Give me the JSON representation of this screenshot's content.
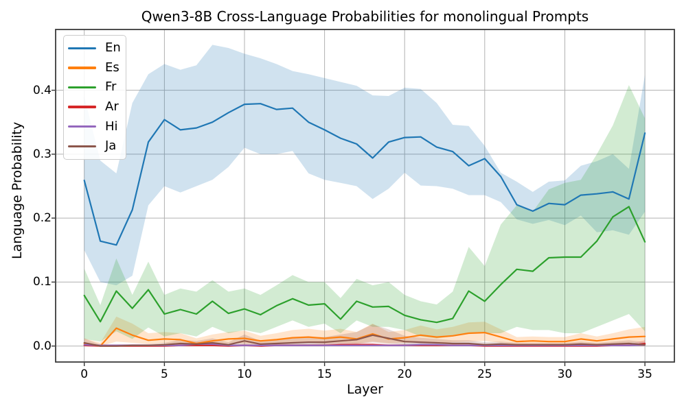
{
  "chart_data": {
    "type": "line",
    "title": "Qwen3-8B Cross-Language Probabilities for monolingual Prompts",
    "xlabel": "Layer",
    "ylabel": "Language Probability",
    "x": [
      0,
      1,
      2,
      3,
      4,
      5,
      6,
      7,
      8,
      9,
      10,
      11,
      12,
      13,
      14,
      15,
      16,
      17,
      18,
      19,
      20,
      21,
      22,
      23,
      24,
      25,
      26,
      27,
      28,
      29,
      30,
      31,
      32,
      33,
      34,
      35
    ],
    "xticks": [
      0,
      5,
      10,
      15,
      20,
      25,
      30,
      35
    ],
    "yticks": [
      0.0,
      0.1,
      0.2,
      0.3,
      0.4
    ],
    "xlim": [
      -1.79,
      36.84
    ],
    "ylim": [
      -0.025,
      0.495
    ],
    "grid": true,
    "legend_position": "upper left",
    "band_opacity": 0.21,
    "style": {
      "grid_color": "#b0b0b0",
      "spine_color": "#3a3a3a",
      "tick_color": "#333333",
      "line_width": 2.2
    },
    "series": [
      {
        "name": "En",
        "color": "#1f77b4",
        "values": [
          0.259,
          0.164,
          0.158,
          0.213,
          0.319,
          0.354,
          0.338,
          0.341,
          0.35,
          0.365,
          0.378,
          0.379,
          0.37,
          0.372,
          0.35,
          0.338,
          0.325,
          0.316,
          0.294,
          0.319,
          0.326,
          0.327,
          0.311,
          0.304,
          0.282,
          0.293,
          0.265,
          0.221,
          0.211,
          0.223,
          0.221,
          0.236,
          0.238,
          0.241,
          0.23,
          0.333
        ],
        "band_lower": [
          0.15,
          0.1,
          0.095,
          0.11,
          0.22,
          0.25,
          0.24,
          0.25,
          0.26,
          0.28,
          0.31,
          0.3,
          0.3,
          0.305,
          0.27,
          0.26,
          0.255,
          0.25,
          0.23,
          0.246,
          0.271,
          0.251,
          0.25,
          0.246,
          0.236,
          0.236,
          0.225,
          0.198,
          0.191,
          0.197,
          0.189,
          0.204,
          0.178,
          0.181,
          0.174,
          0.21
        ],
        "band_upper": [
          0.39,
          0.29,
          0.27,
          0.38,
          0.425,
          0.441,
          0.432,
          0.439,
          0.471,
          0.466,
          0.457,
          0.45,
          0.441,
          0.43,
          0.425,
          0.419,
          0.413,
          0.407,
          0.392,
          0.391,
          0.404,
          0.402,
          0.38,
          0.346,
          0.344,
          0.313,
          0.271,
          0.257,
          0.241,
          0.257,
          0.259,
          0.282,
          0.289,
          0.3,
          0.277,
          0.424
        ]
      },
      {
        "name": "Es",
        "color": "#ff7f0e",
        "values": [
          0.004,
          0.0,
          0.028,
          0.017,
          0.009,
          0.011,
          0.01,
          0.004,
          0.008,
          0.011,
          0.012,
          0.008,
          0.01,
          0.013,
          0.014,
          0.012,
          0.014,
          0.011,
          0.019,
          0.011,
          0.013,
          0.017,
          0.014,
          0.016,
          0.02,
          0.021,
          0.014,
          0.007,
          0.008,
          0.007,
          0.007,
          0.011,
          0.008,
          0.011,
          0.014,
          0.015
        ],
        "band_lower": [
          0.0,
          0.0,
          0.007,
          0.005,
          0.003,
          0.004,
          0.003,
          0.001,
          0.002,
          0.004,
          0.004,
          0.002,
          0.003,
          0.005,
          0.005,
          0.004,
          0.005,
          0.004,
          0.007,
          0.004,
          0.005,
          0.006,
          0.005,
          0.006,
          0.007,
          0.008,
          0.005,
          0.002,
          0.002,
          0.002,
          0.002,
          0.004,
          0.002,
          0.004,
          0.005,
          0.006
        ],
        "band_upper": [
          0.012,
          0.005,
          0.046,
          0.035,
          0.02,
          0.022,
          0.02,
          0.012,
          0.018,
          0.022,
          0.024,
          0.016,
          0.02,
          0.025,
          0.027,
          0.024,
          0.027,
          0.022,
          0.035,
          0.022,
          0.025,
          0.032,
          0.026,
          0.03,
          0.037,
          0.038,
          0.026,
          0.014,
          0.015,
          0.014,
          0.014,
          0.02,
          0.015,
          0.02,
          0.026,
          0.03
        ]
      },
      {
        "name": "Fr",
        "color": "#2ca02c",
        "values": [
          0.079,
          0.038,
          0.086,
          0.059,
          0.088,
          0.05,
          0.057,
          0.05,
          0.07,
          0.051,
          0.058,
          0.049,
          0.063,
          0.074,
          0.064,
          0.066,
          0.042,
          0.07,
          0.061,
          0.062,
          0.048,
          0.041,
          0.037,
          0.043,
          0.086,
          0.07,
          0.096,
          0.12,
          0.117,
          0.138,
          0.139,
          0.139,
          0.164,
          0.202,
          0.218,
          0.163
        ],
        "band_lower": [
          0.011,
          0.007,
          0.023,
          0.011,
          0.029,
          0.015,
          0.02,
          0.015,
          0.03,
          0.02,
          0.025,
          0.02,
          0.03,
          0.04,
          0.03,
          0.035,
          0.02,
          0.04,
          0.03,
          0.03,
          0.025,
          0.015,
          0.012,
          0.015,
          0.02,
          0.02,
          0.02,
          0.03,
          0.025,
          0.025,
          0.02,
          0.02,
          0.03,
          0.04,
          0.05,
          0.023
        ],
        "band_upper": [
          0.121,
          0.064,
          0.137,
          0.08,
          0.132,
          0.08,
          0.09,
          0.085,
          0.103,
          0.085,
          0.09,
          0.08,
          0.095,
          0.111,
          0.1,
          0.1,
          0.075,
          0.105,
          0.095,
          0.1,
          0.08,
          0.07,
          0.065,
          0.085,
          0.155,
          0.125,
          0.19,
          0.22,
          0.21,
          0.245,
          0.255,
          0.26,
          0.3,
          0.345,
          0.408,
          0.356
        ]
      },
      {
        "name": "Ar",
        "color": "#d62728",
        "values": [
          0.001,
          0.0,
          0.0,
          0.0,
          0.0,
          0.0,
          0.001,
          0.001,
          0.001,
          0.0,
          0.001,
          0.0,
          0.001,
          0.001,
          0.001,
          0.001,
          0.002,
          0.002,
          0.002,
          0.001,
          0.001,
          0.001,
          0.001,
          0.001,
          0.001,
          0.0,
          0.0,
          0.0,
          0.0,
          0.0,
          0.0,
          0.0,
          0.0,
          0.001,
          0.001,
          0.004
        ],
        "band_lower": [
          0,
          0,
          0,
          0,
          0,
          0,
          0,
          0,
          0,
          0,
          0,
          0,
          0,
          0,
          0,
          0,
          0,
          0,
          0,
          0,
          0,
          0,
          0,
          0,
          0,
          0,
          0,
          0,
          0,
          0,
          0,
          0,
          0,
          0,
          0,
          0
        ],
        "band_upper": [
          0.003,
          0.002,
          0.002,
          0.002,
          0.002,
          0.002,
          0.003,
          0.003,
          0.003,
          0.002,
          0.003,
          0.002,
          0.003,
          0.003,
          0.003,
          0.004,
          0.005,
          0.005,
          0.005,
          0.003,
          0.003,
          0.003,
          0.003,
          0.003,
          0.002,
          0.002,
          0.002,
          0.002,
          0.002,
          0.002,
          0.002,
          0.002,
          0.002,
          0.003,
          0.003,
          0.009
        ]
      },
      {
        "name": "Hi",
        "color": "#9467bd",
        "values": [
          0.002,
          0.001,
          0.001,
          0.001,
          0.001,
          0.001,
          0.001,
          0.003,
          0.003,
          0.001,
          0.001,
          0.001,
          0.001,
          0.001,
          0.001,
          0.001,
          0.001,
          0.001,
          0.001,
          0.001,
          0.001,
          0.002,
          0.002,
          0.001,
          0.001,
          0.001,
          0.001,
          0.001,
          0.001,
          0.001,
          0.001,
          0.001,
          0.001,
          0.001,
          0.001,
          0.002
        ],
        "band_lower": [
          0,
          0,
          0,
          0,
          0,
          0,
          0,
          0,
          0,
          0,
          0,
          0,
          0,
          0,
          0,
          0,
          0,
          0,
          0,
          0,
          0,
          0,
          0,
          0,
          0,
          0,
          0,
          0,
          0,
          0,
          0,
          0,
          0,
          0,
          0,
          0
        ],
        "band_upper": [
          0.004,
          0.003,
          0.003,
          0.003,
          0.003,
          0.003,
          0.003,
          0.006,
          0.006,
          0.003,
          0.003,
          0.003,
          0.003,
          0.003,
          0.003,
          0.003,
          0.003,
          0.003,
          0.003,
          0.003,
          0.003,
          0.005,
          0.005,
          0.003,
          0.003,
          0.003,
          0.003,
          0.003,
          0.003,
          0.003,
          0.003,
          0.003,
          0.003,
          0.003,
          0.003,
          0.004
        ]
      },
      {
        "name": "Ja",
        "color": "#8c564b",
        "values": [
          0.005,
          0.0,
          0.0,
          0.001,
          0.001,
          0.002,
          0.004,
          0.003,
          0.005,
          0.002,
          0.008,
          0.003,
          0.004,
          0.005,
          0.006,
          0.006,
          0.008,
          0.01,
          0.017,
          0.012,
          0.007,
          0.006,
          0.005,
          0.004,
          0.004,
          0.002,
          0.003,
          0.002,
          0.002,
          0.002,
          0.002,
          0.003,
          0.002,
          0.003,
          0.004,
          0.002
        ],
        "band_lower": [
          0.001,
          0.0,
          0.0,
          0.0,
          0.0,
          0.0,
          0.001,
          0.001,
          0.001,
          0.0,
          0.002,
          0.001,
          0.001,
          0.001,
          0.002,
          0.002,
          0.002,
          0.003,
          0.006,
          0.004,
          0.002,
          0.002,
          0.001,
          0.001,
          0.001,
          0.0,
          0.001,
          0.0,
          0.0,
          0.0,
          0.0,
          0.001,
          0.0,
          0.001,
          0.001,
          0.0
        ],
        "band_upper": [
          0.012,
          0.002,
          0.002,
          0.003,
          0.003,
          0.005,
          0.01,
          0.008,
          0.012,
          0.006,
          0.018,
          0.008,
          0.01,
          0.012,
          0.014,
          0.014,
          0.018,
          0.022,
          0.034,
          0.026,
          0.016,
          0.013,
          0.011,
          0.009,
          0.009,
          0.006,
          0.007,
          0.005,
          0.005,
          0.005,
          0.005,
          0.007,
          0.005,
          0.007,
          0.009,
          0.006
        ]
      }
    ]
  }
}
